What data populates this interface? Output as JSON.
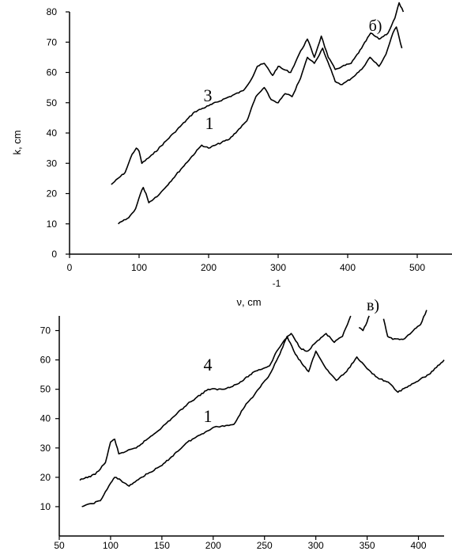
{
  "chart_data": [
    {
      "type": "line",
      "panel_label": "б)",
      "ylabel": "k, cm",
      "xlabel": "ν, cm",
      "xlabel_superscript": "-1",
      "xlim": [
        0,
        550
      ],
      "ylim": [
        0,
        80
      ],
      "xticks": [
        0,
        100,
        200,
        300,
        400,
        500
      ],
      "yticks": [
        0,
        10,
        20,
        30,
        40,
        50,
        60,
        70,
        80
      ],
      "grid": false,
      "series": [
        {
          "name": "3",
          "x": [
            60,
            80,
            90,
            96,
            100,
            104,
            120,
            150,
            180,
            200,
            230,
            250,
            262,
            270,
            280,
            292,
            300,
            308,
            318,
            330,
            342,
            352,
            362,
            372,
            382,
            392,
            405,
            420,
            433,
            445,
            458,
            468,
            474,
            480
          ],
          "y": [
            23,
            27,
            33,
            35,
            34,
            30,
            33,
            40,
            47,
            49,
            52,
            54,
            58,
            62,
            63,
            59,
            62,
            61,
            60,
            66,
            71,
            65,
            72,
            65,
            61,
            62,
            63,
            68,
            73,
            71,
            73,
            78,
            83,
            80
          ]
        },
        {
          "name": "1",
          "x": [
            70,
            85,
            95,
            102,
            106,
            110,
            114,
            130,
            160,
            190,
            200,
            230,
            255,
            268,
            280,
            290,
            300,
            310,
            320,
            332,
            342,
            352,
            364,
            374,
            382,
            392,
            405,
            420,
            432,
            445,
            455,
            465,
            470,
            478
          ],
          "y": [
            10,
            12,
            15,
            20,
            22,
            20,
            17,
            20,
            28,
            36,
            35,
            38,
            44,
            52,
            55,
            51,
            50,
            53,
            52,
            58,
            65,
            63,
            68,
            62,
            57,
            56,
            58,
            61,
            65,
            62,
            66,
            73,
            75,
            68
          ]
        }
      ],
      "curve_labels": [
        {
          "text": "3",
          "series": "3"
        },
        {
          "text": "1",
          "series": "1"
        }
      ]
    },
    {
      "type": "line",
      "panel_label": "в)",
      "xlim": [
        50,
        425
      ],
      "ylim": [
        0,
        75
      ],
      "xticks": [
        50,
        100,
        150,
        200,
        250,
        300,
        350,
        400
      ],
      "yticks": [
        10,
        20,
        30,
        40,
        50,
        60,
        70
      ],
      "grid": false,
      "series": [
        {
          "name": "4",
          "x": [
            70,
            85,
            95,
            100,
            104,
            108,
            125,
            150,
            175,
            195,
            210,
            225,
            240,
            255,
            262,
            270,
            276,
            285,
            292,
            300,
            310,
            318,
            326,
            334
          ],
          "y": [
            19,
            21,
            25,
            32,
            33,
            28,
            30,
            37,
            45,
            50,
            50,
            52,
            56,
            58,
            63,
            67,
            69,
            64,
            63,
            66,
            69,
            66,
            68,
            75
          ]
        },
        {
          "name": "4",
          "x": [
            342,
            346,
            350,
            352
          ],
          "y": [
            71,
            70,
            73,
            75
          ]
        },
        {
          "name": "4",
          "x": [
            366,
            370,
            375,
            385,
            395,
            402,
            408
          ],
          "y": [
            74,
            68,
            67,
            67,
            70,
            72,
            77
          ]
        },
        {
          "name": "1",
          "x": [
            72,
            90,
            100,
            104,
            110,
            118,
            130,
            150,
            175,
            200,
            220,
            232,
            240,
            255,
            265,
            272,
            280,
            288,
            293,
            300,
            310,
            320,
            330,
            340,
            350,
            360,
            372,
            380,
            395,
            410,
            425
          ],
          "y": [
            10,
            12,
            18,
            20,
            19,
            17,
            20,
            24,
            32,
            37,
            38,
            45,
            48,
            55,
            62,
            68,
            62,
            58,
            56,
            63,
            57,
            53,
            56,
            61,
            57,
            54,
            52,
            49,
            52,
            55,
            60
          ]
        }
      ],
      "curve_labels": [
        {
          "text": "4",
          "series": "4"
        },
        {
          "text": "1",
          "series": "1"
        }
      ]
    }
  ]
}
